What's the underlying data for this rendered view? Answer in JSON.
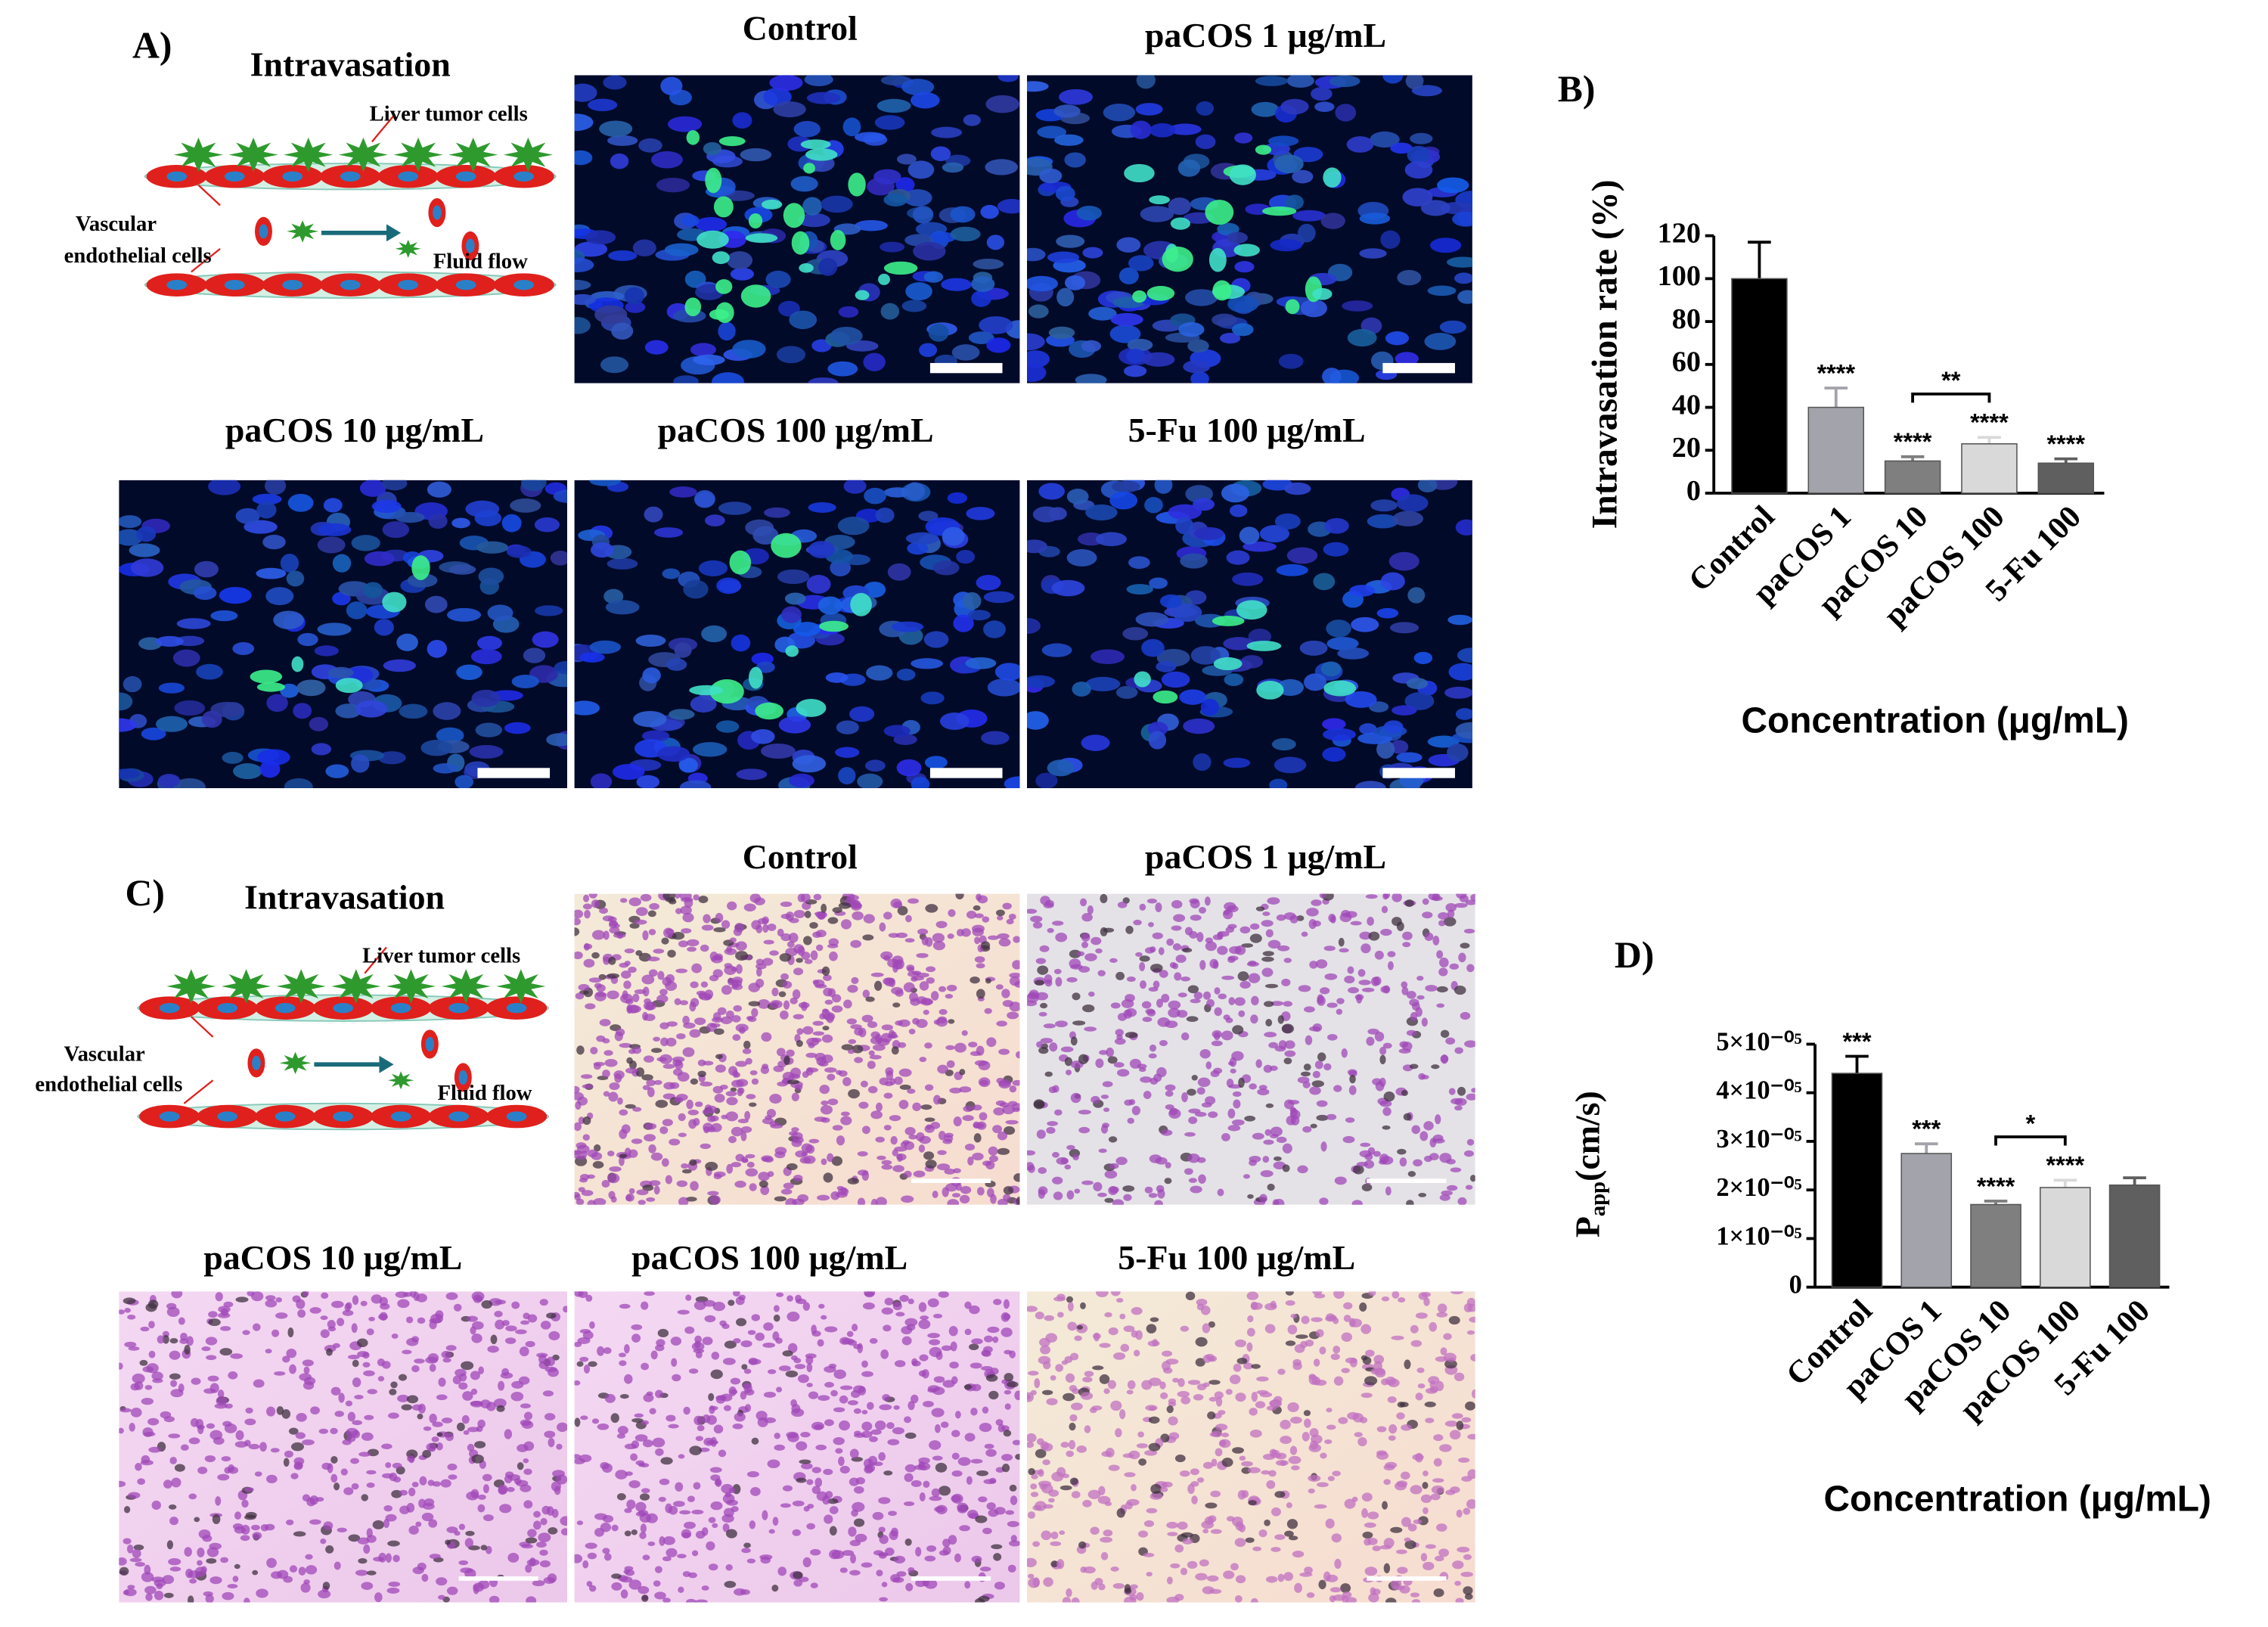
{
  "panels": [
    {
      "label": "A)",
      "schematic": {
        "title": "Intravasation",
        "tumor": "Liver tumor cells",
        "endothelial": [
          "Vascular",
          "endothelial cells"
        ],
        "flow": "Fluid flow"
      },
      "images": [
        "Control",
        "paCOS 1 μg/mL",
        "paCOS 10 μg/mL",
        "paCOS 100 μg/mL",
        "5-Fu 100 μg/mL"
      ]
    },
    {
      "label": "C)",
      "schematic": {
        "title": "Intravasation",
        "tumor": "Liver tumor cells",
        "endothelial": [
          "Vascular",
          "endothelial cells"
        ],
        "flow": "Fluid flow"
      },
      "images": [
        "Control",
        "paCOS 1 μg/mL",
        "paCOS 10 μg/mL",
        "paCOS 100 μg/mL",
        "5-Fu 100 μg/mL"
      ]
    }
  ],
  "chart_data": [
    {
      "type": "bar",
      "title": "B)",
      "ylabel": "Intravasation rate (%)",
      "xlabel": "Concentration (μg/mL)",
      "categories": [
        "Control",
        "paCOS 1",
        "paCOS 10",
        "paCOS 100",
        "5-Fu 100"
      ],
      "values": [
        100,
        40,
        15,
        23,
        14
      ],
      "errors": [
        17,
        9,
        2,
        3,
        2
      ],
      "colors": [
        "#000000",
        "#a3a3ab",
        "#7f7f7f",
        "#d9d9d9",
        "#5f5f5f"
      ],
      "annotations": [
        null,
        "****",
        "****",
        "****",
        "****"
      ],
      "brackets": [
        {
          "categories": [
            "paCOS 10",
            "paCOS 100"
          ],
          "label": "**"
        }
      ],
      "ylim": [
        0,
        120
      ],
      "yticks": [
        0,
        20,
        40,
        60,
        80,
        100,
        120
      ]
    },
    {
      "type": "bar",
      "title": "D)",
      "ylabel": {
        "symbol": "P",
        "subscript": "app",
        "unit": "(cm/s)"
      },
      "xlabel": "Concentration (μg/mL)",
      "categories": [
        "Control",
        "paCOS 1",
        "paCOS 10",
        "paCOS 100",
        "5-Fu 100"
      ],
      "values": [
        4.4e-05,
        2.75e-05,
        1.7e-05,
        2.05e-05,
        2.1e-05
      ],
      "errors": [
        3.5e-06,
        2e-06,
        7e-07,
        1.5e-06,
        1.5e-06
      ],
      "colors": [
        "#000000",
        "#a3a3ab",
        "#7f7f7f",
        "#d9d9d9",
        "#5f5f5f"
      ],
      "annotations": [
        "***",
        "***",
        "****",
        "****",
        null
      ],
      "brackets": [
        {
          "categories": [
            "paCOS 10",
            "paCOS 100"
          ],
          "label": "*"
        }
      ],
      "annotations_extra": null,
      "ylim": [
        0,
        5e-05
      ],
      "yticks": [
        0,
        {
          "value": 1e-05,
          "label": "1×10⁻⁰⁵"
        },
        {
          "value": 2e-05,
          "label": "2×10⁻⁰⁵"
        },
        {
          "value": 3e-05,
          "label": "3×10⁻⁰⁵"
        },
        {
          "value": 4e-05,
          "label": "4×10⁻⁰⁵"
        },
        {
          "value": 5e-05,
          "label": "5×10⁻⁰⁵"
        }
      ]
    }
  ]
}
